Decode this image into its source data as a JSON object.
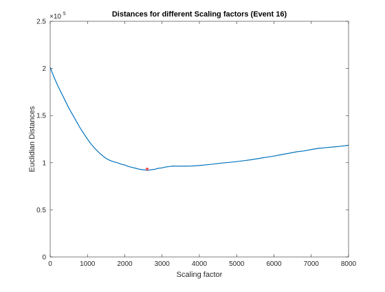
{
  "chart_data": {
    "type": "line",
    "title": "Distances for different Scaling factors (Event 16)",
    "xlabel": "Scaling factor",
    "ylabel": "Euclidian Distances",
    "xlim": [
      0,
      8000
    ],
    "ylim": [
      0,
      250000
    ],
    "y_exponent_label": "×10",
    "y_exponent_power": "5",
    "x_ticks": [
      {
        "value": 0,
        "label": "0"
      },
      {
        "value": 1000,
        "label": "1000"
      },
      {
        "value": 2000,
        "label": "2000"
      },
      {
        "value": 3000,
        "label": "3000"
      },
      {
        "value": 4000,
        "label": "4000"
      },
      {
        "value": 5000,
        "label": "5000"
      },
      {
        "value": 6000,
        "label": "6000"
      },
      {
        "value": 7000,
        "label": "7000"
      },
      {
        "value": 8000,
        "label": "8000"
      }
    ],
    "y_ticks": [
      {
        "value": 0,
        "label": "0"
      },
      {
        "value": 50000,
        "label": "0.5"
      },
      {
        "value": 100000,
        "label": "1"
      },
      {
        "value": 150000,
        "label": "1.5"
      },
      {
        "value": 200000,
        "label": "2"
      },
      {
        "value": 250000,
        "label": "2.5"
      }
    ],
    "grid": false,
    "box": true,
    "series": [
      {
        "color": "#0072BD",
        "points": [
          [
            0,
            201000
          ],
          [
            100,
            191000
          ],
          [
            200,
            182000
          ],
          [
            300,
            174000
          ],
          [
            400,
            166000
          ],
          [
            500,
            158000
          ],
          [
            600,
            151000
          ],
          [
            700,
            144000
          ],
          [
            800,
            137000
          ],
          [
            900,
            131000
          ],
          [
            1000,
            125000
          ],
          [
            1100,
            119500
          ],
          [
            1200,
            115000
          ],
          [
            1300,
            111000
          ],
          [
            1400,
            107500
          ],
          [
            1500,
            104500
          ],
          [
            1600,
            102500
          ],
          [
            1700,
            101000
          ],
          [
            1800,
            100000
          ],
          [
            1900,
            98500
          ],
          [
            2000,
            97500
          ],
          [
            2100,
            96000
          ],
          [
            2200,
            95000
          ],
          [
            2300,
            94000
          ],
          [
            2400,
            93000
          ],
          [
            2500,
            92500
          ],
          [
            2600,
            92000
          ],
          [
            2700,
            92500
          ],
          [
            2800,
            93000
          ],
          [
            2900,
            94000
          ],
          [
            3000,
            94500
          ],
          [
            3100,
            95500
          ],
          [
            3200,
            96000
          ],
          [
            3300,
            96500
          ],
          [
            3400,
            96300
          ],
          [
            3600,
            96300
          ],
          [
            3800,
            96500
          ],
          [
            4000,
            97000
          ],
          [
            4200,
            97800
          ],
          [
            4400,
            98600
          ],
          [
            4600,
            99600
          ],
          [
            4800,
            100400
          ],
          [
            5000,
            101200
          ],
          [
            5200,
            102200
          ],
          [
            5400,
            103200
          ],
          [
            5600,
            104500
          ],
          [
            5800,
            105800
          ],
          [
            6000,
            107000
          ],
          [
            6200,
            108600
          ],
          [
            6400,
            110000
          ],
          [
            6600,
            111500
          ],
          [
            6800,
            112500
          ],
          [
            7000,
            114000
          ],
          [
            7200,
            115200
          ],
          [
            7400,
            116000
          ],
          [
            7600,
            116700
          ],
          [
            7800,
            117500
          ],
          [
            8000,
            118500
          ]
        ]
      }
    ],
    "marker": {
      "x": 2600,
      "y": 92000,
      "symbol": "*",
      "color": "#FF0000"
    }
  }
}
